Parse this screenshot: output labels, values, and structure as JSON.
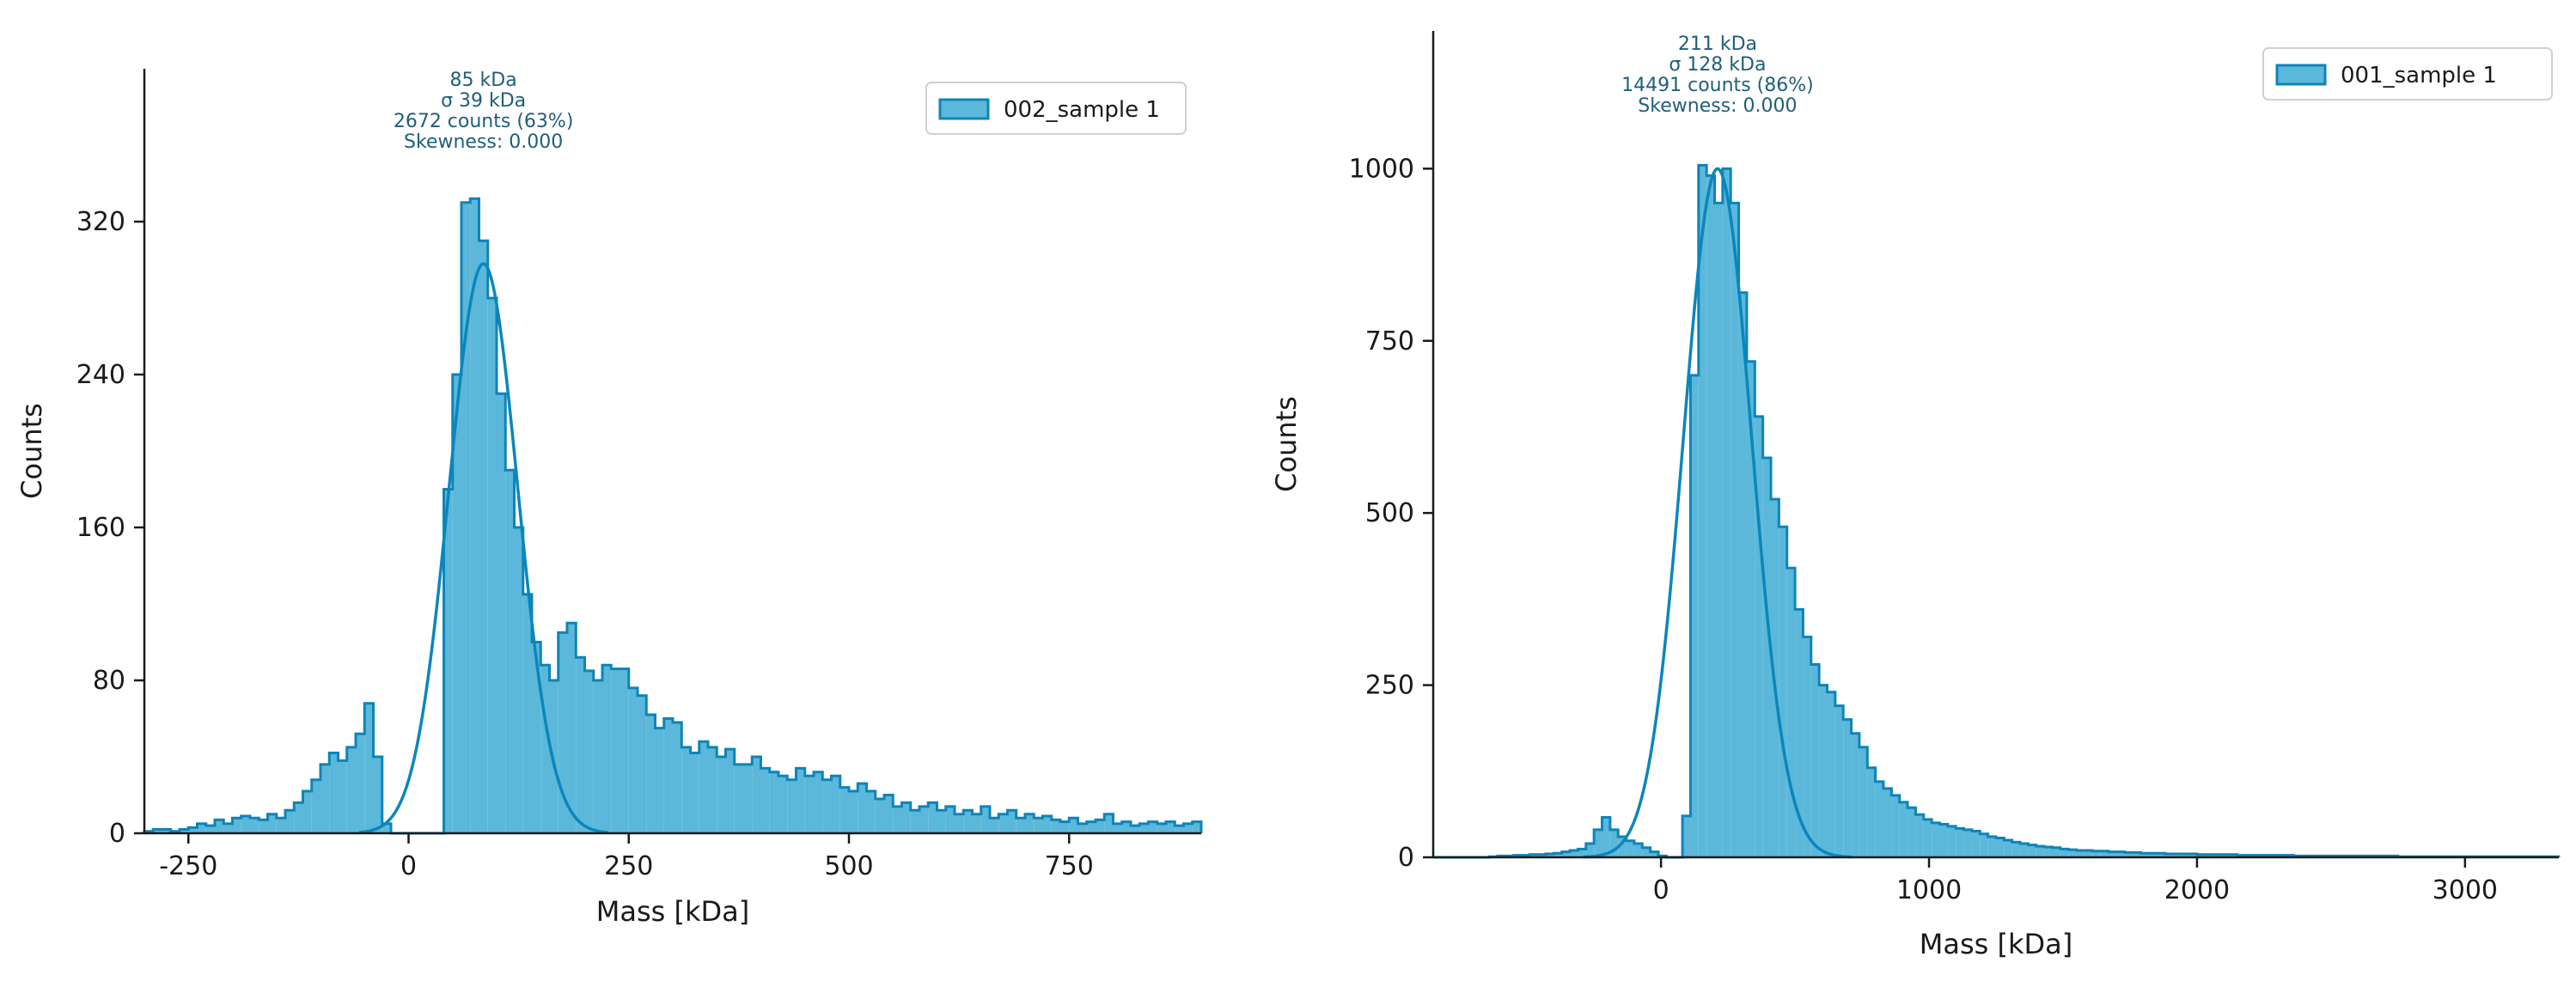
{
  "colors": {
    "bar_fill": "#5bb8da",
    "bar_edge": "#0e84b8",
    "fit_line": "#0b86bd",
    "axis": "#1a1a1a",
    "annotation": "#1f5f7a"
  },
  "chart_data": [
    {
      "type": "bar",
      "histogram": true,
      "xlabel": "Mass [kDa]",
      "ylabel": "Counts",
      "xlim": [
        -300,
        900
      ],
      "ylim": [
        0,
        400
      ],
      "xticks": [
        -250,
        0,
        250,
        500,
        750
      ],
      "yticks": [
        0,
        80,
        160,
        240,
        320
      ],
      "grid": false,
      "legend": {
        "entries": [
          "002_sample 1"
        ],
        "placement": "top-right"
      },
      "series": [
        {
          "name": "002_sample 1",
          "bin_width": 10,
          "bins": [
            [
              -300,
              1
            ],
            [
              -290,
              2
            ],
            [
              -280,
              2
            ],
            [
              -270,
              1
            ],
            [
              -260,
              2
            ],
            [
              -250,
              3
            ],
            [
              -240,
              5
            ],
            [
              -230,
              4
            ],
            [
              -220,
              7
            ],
            [
              -210,
              5
            ],
            [
              -200,
              8
            ],
            [
              -190,
              9
            ],
            [
              -180,
              8
            ],
            [
              -170,
              7
            ],
            [
              -160,
              10
            ],
            [
              -150,
              8
            ],
            [
              -140,
              12
            ],
            [
              -130,
              16
            ],
            [
              -120,
              22
            ],
            [
              -110,
              28
            ],
            [
              -100,
              36
            ],
            [
              -90,
              42
            ],
            [
              -80,
              38
            ],
            [
              -70,
              45
            ],
            [
              -60,
              52
            ],
            [
              -50,
              68
            ],
            [
              -40,
              40
            ],
            [
              -30,
              5
            ],
            [
              -20,
              0
            ],
            [
              -10,
              0
            ],
            [
              0,
              0
            ],
            [
              10,
              0
            ],
            [
              20,
              0
            ],
            [
              30,
              0
            ],
            [
              40,
              180
            ],
            [
              50,
              240
            ],
            [
              60,
              330
            ],
            [
              70,
              332
            ],
            [
              80,
              310
            ],
            [
              90,
              280
            ],
            [
              100,
              230
            ],
            [
              110,
              190
            ],
            [
              120,
              160
            ],
            [
              130,
              125
            ],
            [
              140,
              100
            ],
            [
              150,
              88
            ],
            [
              160,
              80
            ],
            [
              170,
              105
            ],
            [
              180,
              110
            ],
            [
              190,
              92
            ],
            [
              200,
              85
            ],
            [
              210,
              80
            ],
            [
              220,
              88
            ],
            [
              230,
              86
            ],
            [
              240,
              86
            ],
            [
              250,
              76
            ],
            [
              260,
              72
            ],
            [
              270,
              62
            ],
            [
              280,
              55
            ],
            [
              290,
              60
            ],
            [
              300,
              58
            ],
            [
              310,
              45
            ],
            [
              320,
              42
            ],
            [
              330,
              48
            ],
            [
              340,
              45
            ],
            [
              350,
              40
            ],
            [
              360,
              44
            ],
            [
              370,
              36
            ],
            [
              380,
              36
            ],
            [
              390,
              40
            ],
            [
              400,
              34
            ],
            [
              410,
              32
            ],
            [
              420,
              30
            ],
            [
              430,
              28
            ],
            [
              440,
              34
            ],
            [
              450,
              30
            ],
            [
              460,
              32
            ],
            [
              470,
              28
            ],
            [
              480,
              30
            ],
            [
              490,
              24
            ],
            [
              500,
              22
            ],
            [
              510,
              26
            ],
            [
              520,
              22
            ],
            [
              530,
              18
            ],
            [
              540,
              20
            ],
            [
              550,
              14
            ],
            [
              560,
              16
            ],
            [
              570,
              12
            ],
            [
              580,
              14
            ],
            [
              590,
              16
            ],
            [
              600,
              12
            ],
            [
              610,
              14
            ],
            [
              620,
              10
            ],
            [
              630,
              12
            ],
            [
              640,
              10
            ],
            [
              650,
              14
            ],
            [
              660,
              8
            ],
            [
              670,
              10
            ],
            [
              680,
              12
            ],
            [
              690,
              8
            ],
            [
              700,
              10
            ],
            [
              710,
              8
            ],
            [
              720,
              9
            ],
            [
              730,
              7
            ],
            [
              740,
              6
            ],
            [
              750,
              8
            ],
            [
              760,
              5
            ],
            [
              770,
              6
            ],
            [
              780,
              7
            ],
            [
              790,
              10
            ],
            [
              800,
              5
            ],
            [
              810,
              6
            ],
            [
              820,
              4
            ],
            [
              830,
              5
            ],
            [
              840,
              6
            ],
            [
              850,
              5
            ],
            [
              860,
              6
            ],
            [
              870,
              4
            ],
            [
              880,
              5
            ],
            [
              890,
              6
            ]
          ]
        }
      ],
      "fit": {
        "mean": 85,
        "sigma": 39,
        "peak": 298
      },
      "annotation": [
        "85 kDa",
        "σ 39 kDa",
        "2672 counts (63%)",
        "Skewness: 0.000"
      ],
      "annotation_x": 85
    },
    {
      "type": "bar",
      "histogram": true,
      "xlabel": "Mass [kDa]",
      "ylabel": "Counts",
      "xlim": [
        -850,
        3350
      ],
      "ylim": [
        0,
        1200
      ],
      "xticks": [
        0,
        1000,
        2000,
        3000
      ],
      "yticks": [
        0,
        250,
        500,
        750,
        1000
      ],
      "grid": false,
      "legend": {
        "entries": [
          "001_sample 1"
        ],
        "placement": "top-right"
      },
      "series": [
        {
          "name": "001_sample 1",
          "bin_width": 30,
          "bins": [
            [
              -850,
              0
            ],
            [
              -820,
              0
            ],
            [
              -790,
              0
            ],
            [
              -760,
              0
            ],
            [
              -730,
              0
            ],
            [
              -700,
              0
            ],
            [
              -670,
              0
            ],
            [
              -640,
              1
            ],
            [
              -610,
              2
            ],
            [
              -580,
              2
            ],
            [
              -550,
              3
            ],
            [
              -520,
              3
            ],
            [
              -490,
              4
            ],
            [
              -460,
              4
            ],
            [
              -430,
              5
            ],
            [
              -400,
              6
            ],
            [
              -370,
              8
            ],
            [
              -340,
              10
            ],
            [
              -310,
              12
            ],
            [
              -280,
              20
            ],
            [
              -250,
              40
            ],
            [
              -220,
              58
            ],
            [
              -190,
              40
            ],
            [
              -160,
              30
            ],
            [
              -130,
              24
            ],
            [
              -100,
              20
            ],
            [
              -70,
              14
            ],
            [
              -40,
              8
            ],
            [
              -10,
              2
            ],
            [
              20,
              0
            ],
            [
              50,
              0
            ],
            [
              80,
              60
            ],
            [
              110,
              700
            ],
            [
              140,
              1005
            ],
            [
              170,
              990
            ],
            [
              200,
              950
            ],
            [
              230,
              1000
            ],
            [
              260,
              950
            ],
            [
              290,
              820
            ],
            [
              320,
              720
            ],
            [
              350,
              640
            ],
            [
              380,
              580
            ],
            [
              410,
              520
            ],
            [
              440,
              480
            ],
            [
              470,
              420
            ],
            [
              500,
              360
            ],
            [
              530,
              320
            ],
            [
              560,
              280
            ],
            [
              590,
              250
            ],
            [
              620,
              240
            ],
            [
              650,
              220
            ],
            [
              680,
              200
            ],
            [
              710,
              180
            ],
            [
              740,
              160
            ],
            [
              770,
              130
            ],
            [
              800,
              110
            ],
            [
              830,
              100
            ],
            [
              860,
              90
            ],
            [
              890,
              80
            ],
            [
              920,
              72
            ],
            [
              950,
              62
            ],
            [
              980,
              55
            ],
            [
              1010,
              50
            ],
            [
              1040,
              48
            ],
            [
              1070,
              45
            ],
            [
              1100,
              42
            ],
            [
              1130,
              40
            ],
            [
              1160,
              38
            ],
            [
              1190,
              34
            ],
            [
              1220,
              30
            ],
            [
              1250,
              28
            ],
            [
              1280,
              25
            ],
            [
              1310,
              22
            ],
            [
              1340,
              20
            ],
            [
              1370,
              18
            ],
            [
              1400,
              16
            ],
            [
              1430,
              15
            ],
            [
              1460,
              14
            ],
            [
              1490,
              12
            ],
            [
              1520,
              11
            ],
            [
              1550,
              10
            ],
            [
              1580,
              10
            ],
            [
              1610,
              9
            ],
            [
              1640,
              9
            ],
            [
              1670,
              8
            ],
            [
              1700,
              8
            ],
            [
              1730,
              7
            ],
            [
              1760,
              7
            ],
            [
              1790,
              6
            ],
            [
              1820,
              6
            ],
            [
              1850,
              6
            ],
            [
              1880,
              5
            ],
            [
              1910,
              5
            ],
            [
              1940,
              5
            ],
            [
              1970,
              5
            ],
            [
              2000,
              4
            ],
            [
              2030,
              4
            ],
            [
              2060,
              4
            ],
            [
              2090,
              4
            ],
            [
              2120,
              4
            ],
            [
              2150,
              3
            ],
            [
              2180,
              3
            ],
            [
              2210,
              3
            ],
            [
              2240,
              3
            ],
            [
              2270,
              3
            ],
            [
              2300,
              3
            ],
            [
              2330,
              3
            ],
            [
              2360,
              2
            ],
            [
              2390,
              2
            ],
            [
              2420,
              2
            ],
            [
              2450,
              2
            ],
            [
              2480,
              2
            ],
            [
              2510,
              2
            ],
            [
              2540,
              2
            ],
            [
              2570,
              2
            ],
            [
              2600,
              2
            ],
            [
              2630,
              2
            ],
            [
              2660,
              2
            ],
            [
              2690,
              2
            ],
            [
              2720,
              2
            ],
            [
              2750,
              1
            ],
            [
              2780,
              1
            ],
            [
              2810,
              1
            ],
            [
              2840,
              1
            ],
            [
              2870,
              1
            ],
            [
              2900,
              1
            ],
            [
              2930,
              1
            ],
            [
              2960,
              1
            ],
            [
              2990,
              1
            ],
            [
              3020,
              1
            ],
            [
              3050,
              1
            ],
            [
              3080,
              1
            ],
            [
              3110,
              1
            ],
            [
              3140,
              1
            ],
            [
              3170,
              1
            ],
            [
              3200,
              1
            ],
            [
              3230,
              1
            ],
            [
              3260,
              1
            ],
            [
              3290,
              1
            ],
            [
              3320,
              1
            ]
          ]
        }
      ],
      "fit": {
        "mean": 211,
        "sigma": 128,
        "peak": 1000
      },
      "annotation": [
        "211 kDa",
        "σ 128 kDa",
        "14491 counts (86%)",
        "Skewness: 0.000"
      ],
      "annotation_x": 211
    }
  ]
}
